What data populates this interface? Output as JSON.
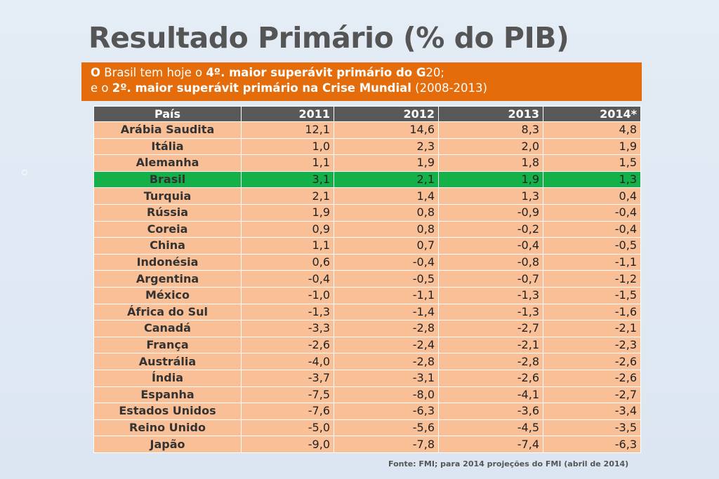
{
  "title": "Resultado Primário (% do PIB)",
  "banner": {
    "line1": [
      {
        "text": "O",
        "bold": true
      },
      {
        "text": " Brasil tem hoje o ",
        "bold": false
      },
      {
        "text": "4º. maior superávit primário do G",
        "bold": true
      },
      {
        "text": "20;",
        "bold": false
      }
    ],
    "line2": [
      {
        "text": "e o ",
        "bold": false
      },
      {
        "text": "2º. maior superávit primário na Crise Mundial",
        "bold": true
      },
      {
        "text": " (2008-2013)",
        "bold": false
      }
    ]
  },
  "table": {
    "headers": [
      "País",
      "2011",
      "2012",
      "2013",
      "2014*"
    ],
    "highlight_country": "Brasil",
    "rows": [
      {
        "country": "Arábia Saudita",
        "values": [
          "12,1",
          "14,6",
          "8,3",
          "4,8"
        ]
      },
      {
        "country": "Itália",
        "values": [
          "1,0",
          "2,3",
          "2,0",
          "1,9"
        ]
      },
      {
        "country": "Alemanha",
        "values": [
          "1,1",
          "1,9",
          "1,8",
          "1,5"
        ]
      },
      {
        "country": "Brasil",
        "values": [
          "3,1",
          "2,1",
          "1,9",
          "1,3"
        ]
      },
      {
        "country": "Turquia",
        "values": [
          "2,1",
          "1,4",
          "1,3",
          "0,4"
        ]
      },
      {
        "country": "Rússia",
        "values": [
          "1,9",
          "0,8",
          "-0,9",
          "-0,4"
        ]
      },
      {
        "country": "Coreia",
        "values": [
          "0,9",
          "0,8",
          "-0,2",
          "-0,4"
        ]
      },
      {
        "country": "China",
        "values": [
          "1,1",
          "0,7",
          "-0,4",
          "-0,5"
        ]
      },
      {
        "country": "Indonésia",
        "values": [
          "0,6",
          "-0,4",
          "-0,8",
          "-1,1"
        ]
      },
      {
        "country": "Argentina",
        "values": [
          "-0,4",
          "-0,5",
          "-0,7",
          "-1,2"
        ]
      },
      {
        "country": "México",
        "values": [
          "-1,0",
          "-1,1",
          "-1,3",
          "-1,5"
        ]
      },
      {
        "country": "África do Sul",
        "values": [
          "-1,3",
          "-1,4",
          "-1,3",
          "-1,6"
        ]
      },
      {
        "country": "Canadá",
        "values": [
          "-3,3",
          "-2,8",
          "-2,7",
          "-2,1"
        ]
      },
      {
        "country": "França",
        "values": [
          "-2,6",
          "-2,4",
          "-2,1",
          "-2,3"
        ]
      },
      {
        "country": "Austrália",
        "values": [
          "-4,0",
          "-2,8",
          "-2,8",
          "-2,6"
        ]
      },
      {
        "country": "Índia",
        "values": [
          "-3,7",
          "-3,1",
          "-2,6",
          "-2,6"
        ]
      },
      {
        "country": "Espanha",
        "values": [
          "-7,5",
          "-8,0",
          "-4,1",
          "-2,7"
        ]
      },
      {
        "country": "Estados Unidos",
        "values": [
          "-7,6",
          "-6,3",
          "-3,6",
          "-3,4"
        ]
      },
      {
        "country": "Reino Unido",
        "values": [
          "-5,0",
          "-5,6",
          "-4,5",
          "-3,5"
        ]
      },
      {
        "country": "Japão",
        "values": [
          "-9,0",
          "-7,8",
          "-7,4",
          "-6,3"
        ]
      }
    ]
  },
  "source": "Fonte: FMI; para  2014 projeções do FMI (abril de 2014)",
  "colors": {
    "banner": "#e46c0a",
    "header": "#595959",
    "row": "#f9bf96",
    "highlight": "#14b14b",
    "title": "#555555"
  }
}
